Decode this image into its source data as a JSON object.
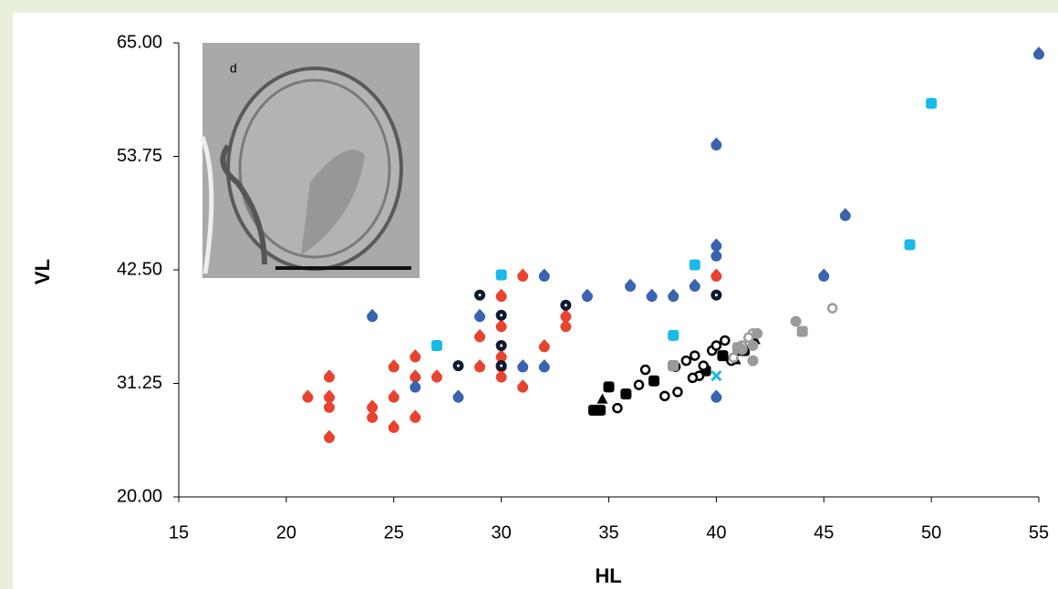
{
  "chart_data": {
    "type": "scatter",
    "xlabel": "HL",
    "ylabel": "VL",
    "inset_label": "d",
    "xlim": [
      15,
      55
    ],
    "xticks": [
      15,
      20,
      25,
      30,
      35,
      40,
      45,
      50,
      55
    ],
    "ylim": [
      20,
      65
    ],
    "yticks": [
      {
        "value": 20,
        "label": "20.00"
      },
      {
        "value": 31.25,
        "label": "31.25"
      },
      {
        "value": 42.5,
        "label": "42.50"
      },
      {
        "value": 53.75,
        "label": "53.75"
      },
      {
        "value": 65,
        "label": "65.00"
      }
    ],
    "grid": false,
    "series": [
      {
        "color": "#e8432e",
        "marker": "drop",
        "x": [
          21,
          22,
          22,
          22,
          22,
          24,
          24,
          25,
          25,
          25,
          26,
          26,
          26,
          27,
          29,
          29,
          30,
          30,
          30,
          30,
          30,
          31,
          31,
          32,
          33,
          33,
          40
        ],
        "y": [
          30,
          32,
          30,
          29,
          26,
          29,
          28,
          33,
          30,
          27,
          34,
          32,
          28,
          32,
          36,
          33,
          40,
          37,
          34,
          33,
          32,
          42,
          31,
          35,
          38,
          37,
          42
        ]
      },
      {
        "color": "#3a63b0",
        "marker": "drop",
        "x": [
          24,
          26,
          28,
          29,
          31,
          32,
          32,
          34,
          36,
          37,
          38,
          39,
          40,
          40,
          40,
          40,
          45,
          46,
          55
        ],
        "y": [
          38,
          31,
          30,
          38,
          33,
          42,
          33,
          40,
          41,
          40,
          40,
          41,
          55,
          45,
          44,
          30,
          42,
          48,
          64
        ]
      },
      {
        "color": "#19b9ea",
        "marker": "square",
        "x": [
          27,
          30,
          38,
          39,
          49,
          50
        ],
        "y": [
          35,
          42,
          36,
          43,
          45,
          59
        ]
      },
      {
        "color": "#19b9ea",
        "marker": "cross",
        "x": [
          40
        ],
        "y": [
          32
        ]
      },
      {
        "color": "#0d1a33",
        "marker": "dot",
        "x": [
          28,
          29,
          30,
          30,
          30,
          33,
          40
        ],
        "y": [
          33,
          40,
          38,
          35,
          33,
          39,
          40
        ]
      },
      {
        "color": "#000000",
        "marker": "square",
        "x": [
          34.3,
          34.6,
          35,
          35.8,
          37.1,
          38,
          39.5,
          40.3,
          41.3
        ],
        "y": [
          28.6,
          28.6,
          30.9,
          30.2,
          31.5,
          33,
          32.5,
          34,
          34.5
        ]
      },
      {
        "color": "#000000",
        "marker": "triangle",
        "x": [
          34.7,
          40.9,
          41.8
        ],
        "y": [
          29.7,
          33.6,
          35.6
        ]
      },
      {
        "color": "#000000",
        "marker": "ring",
        "x": [
          35.4,
          36.4,
          36.7,
          37.6,
          38.2,
          38.1,
          38.6,
          39,
          39.4,
          39.8,
          40,
          40.4,
          40.7,
          41,
          39.2,
          38.9
        ],
        "y": [
          28.8,
          31.1,
          32.6,
          30,
          30.4,
          32.9,
          33.5,
          34,
          33,
          34.5,
          35,
          35.5,
          33.5,
          34.5,
          32,
          31.8
        ]
      },
      {
        "color": "#9a9a9a",
        "marker": "ring",
        "x": [
          41.7,
          41.2,
          41.5,
          45.4,
          40.8
        ],
        "y": [
          36.2,
          35,
          35.8,
          38.7,
          33.8
        ]
      },
      {
        "color": "#9a9a9a",
        "marker": "circle",
        "x": [
          41.7,
          43.7,
          41.7,
          41.2,
          41.9
        ],
        "y": [
          35,
          37.4,
          33.5,
          34.6,
          36.2
        ]
      },
      {
        "color": "#9a9a9a",
        "marker": "square",
        "x": [
          44,
          41,
          38
        ],
        "y": [
          36.4,
          34.8,
          33
        ]
      }
    ]
  }
}
